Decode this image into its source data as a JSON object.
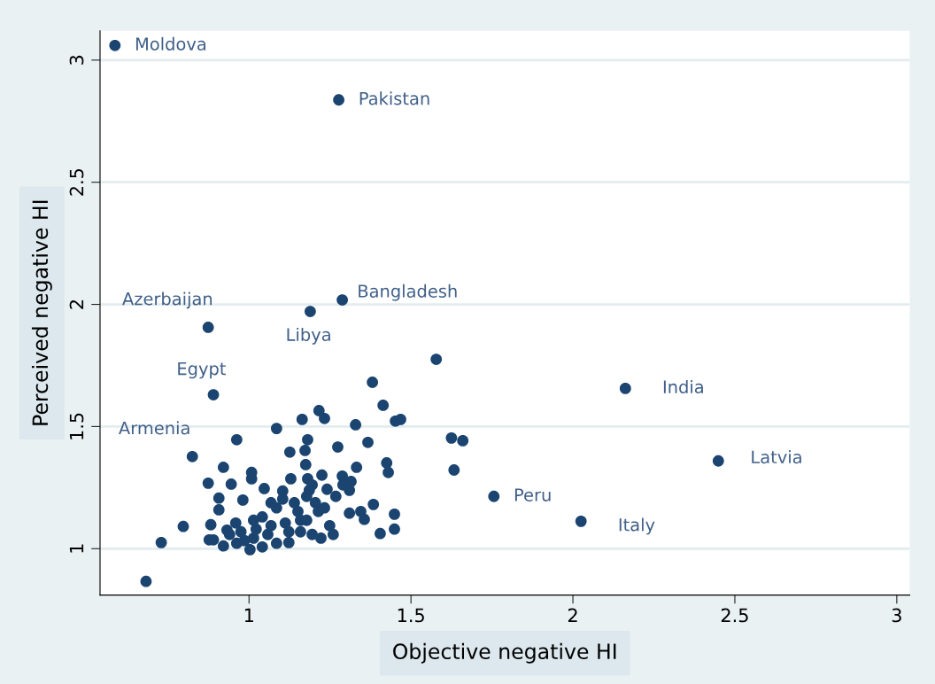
{
  "chart_data": {
    "type": "scatter",
    "xlabel": "Objective negative HI",
    "ylabel": "Perceived negative HI",
    "xlim": [
      0.54,
      3.04
    ],
    "ylim": [
      0.81,
      3.12
    ],
    "xticks": [
      1,
      1.5,
      2,
      2.5,
      3
    ],
    "yticks": [
      1,
      1.5,
      2,
      2.5,
      3
    ],
    "grid": "y",
    "marker": "circle",
    "series": [
      {
        "color": "#1b4570",
        "x": [
          0.586,
          1.277,
          1.288,
          1.189,
          0.874,
          0.89,
          0.825,
          2.162,
          2.449,
          1.756,
          2.025,
          1.578,
          1.381,
          1.414,
          1.452,
          1.468,
          1.625,
          1.66,
          1.633,
          1.216,
          1.233,
          1.164,
          1.085,
          1.329,
          0.962,
          1.181,
          1.274,
          1.367,
          1.126,
          1.173,
          1.175,
          0.921,
          1.008,
          1.008,
          0.874,
          0.945,
          1.129,
          1.225,
          1.332,
          1.425,
          1.43,
          1.288,
          1.315,
          1.29,
          1.181,
          1.195,
          1.104,
          1.047,
          1.241,
          1.268,
          1.31,
          0.907,
          0.981,
          1.384,
          0.907,
          1.31,
          1.345,
          1.356,
          1.449,
          1.449,
          1.405,
          1.249,
          1.26,
          1.222,
          1.195,
          0.797,
          0.729,
          0.682,
          0.882,
          0.877,
          0.89,
          0.921,
          0.932,
          0.962,
          1.003,
          1.041,
          1.085,
          1.123,
          0.975,
          1.022,
          1.068,
          1.112,
          1.159,
          1.041,
          1.085,
          1.14,
          1.178,
          1.205,
          1.214,
          1.159,
          1.014,
          1.058,
          1.123,
          1.178,
          1.233,
          1.186,
          1.068,
          1.014,
          0.959,
          0.94,
          1.104,
          1.151,
          0.986
        ],
        "values": [
          3.06,
          2.837,
          2.018,
          1.971,
          1.906,
          1.63,
          1.377,
          1.656,
          1.359,
          1.214,
          1.112,
          1.775,
          1.681,
          1.587,
          1.522,
          1.529,
          1.453,
          1.442,
          1.322,
          1.565,
          1.533,
          1.529,
          1.492,
          1.507,
          1.446,
          1.446,
          1.416,
          1.435,
          1.395,
          1.402,
          1.344,
          1.333,
          1.312,
          1.286,
          1.268,
          1.264,
          1.286,
          1.301,
          1.333,
          1.351,
          1.312,
          1.297,
          1.275,
          1.261,
          1.286,
          1.261,
          1.236,
          1.246,
          1.243,
          1.214,
          1.239,
          1.207,
          1.199,
          1.181,
          1.159,
          1.145,
          1.152,
          1.12,
          1.141,
          1.08,
          1.062,
          1.094,
          1.058,
          1.043,
          1.058,
          1.091,
          1.025,
          0.866,
          1.098,
          1.036,
          1.036,
          1.011,
          1.076,
          1.022,
          0.996,
          1.007,
          1.022,
          1.025,
          1.069,
          1.08,
          1.094,
          1.105,
          1.116,
          1.13,
          1.167,
          1.188,
          1.214,
          1.188,
          1.152,
          1.069,
          1.043,
          1.058,
          1.069,
          1.116,
          1.167,
          1.239,
          1.188,
          1.116,
          1.105,
          1.058,
          1.203,
          1.152,
          1.033
        ]
      }
    ],
    "annotations": [
      {
        "text": "Moldova",
        "x": 0.586,
        "y": 3.06
      },
      {
        "text": "Pakistan",
        "x": 1.277,
        "y": 2.837
      },
      {
        "text": "Bangladesh",
        "x": 1.288,
        "y": 2.018
      },
      {
        "text": "Libya",
        "x": 1.189,
        "y": 1.971
      },
      {
        "text": "Azerbaijan",
        "x": 0.874,
        "y": 1.906
      },
      {
        "text": "Egypt",
        "x": 0.89,
        "y": 1.63
      },
      {
        "text": "Armenia",
        "x": 0.825,
        "y": 1.377
      },
      {
        "text": "India",
        "x": 2.162,
        "y": 1.656
      },
      {
        "text": "Latvia",
        "x": 2.449,
        "y": 1.359
      },
      {
        "text": "Peru",
        "x": 1.756,
        "y": 1.214
      },
      {
        "text": "Italy",
        "x": 2.025,
        "y": 1.112
      }
    ]
  }
}
